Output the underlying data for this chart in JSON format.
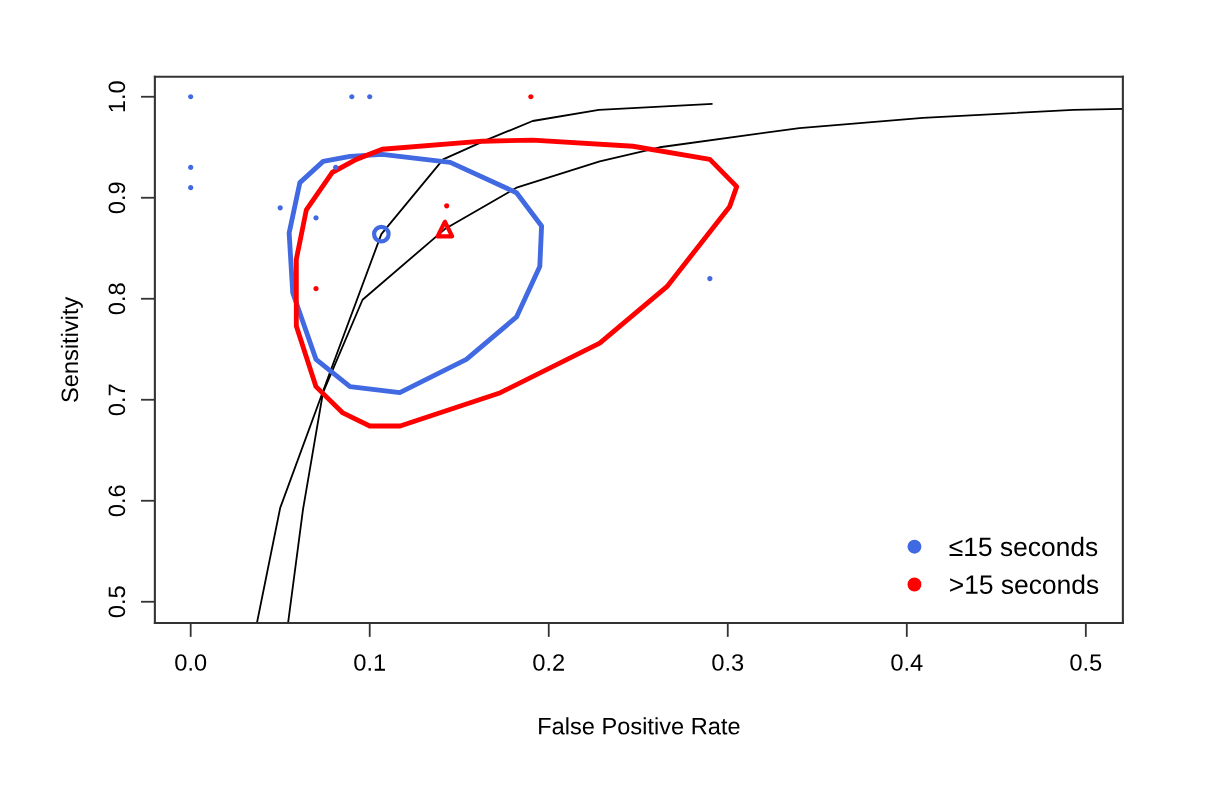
{
  "chart_data": {
    "type": "scatter",
    "xlabel": "False Positive Rate",
    "ylabel": "Sensitivity",
    "xlim": [
      -0.02,
      0.5207
    ],
    "ylim": [
      0.479,
      1.0198
    ],
    "xticks": [
      {
        "value": 0,
        "label": "0.0"
      },
      0.1,
      0.2,
      0.3,
      0.4,
      0.5
    ],
    "yticks": [
      0.5,
      0.6,
      0.7,
      0.8,
      0.9,
      {
        "value": 1,
        "label": "1.0"
      }
    ],
    "grid": false,
    "legend": "bottom right",
    "series": [
      {
        "type": "line",
        "color": "#000000",
        "marker": "none",
        "x": [
          0.037,
          0.05,
          0.0786,
          0.1065,
          0.141,
          0.165,
          0.191,
          0.228,
          0.291
        ],
        "values": [
          0.479,
          0.593,
          0.731,
          0.864,
          0.938,
          0.957,
          0.976,
          0.987,
          0.993
        ]
      },
      {
        "type": "line",
        "color": "#000000",
        "marker": "none",
        "x": [
          0.0544,
          0.0627,
          0.0739,
          0.096,
          0.142,
          0.182,
          0.2285,
          0.262,
          0.34,
          0.409,
          0.493,
          0.5207
        ],
        "values": [
          0.479,
          0.591,
          0.707,
          0.799,
          0.869,
          0.91,
          0.936,
          0.95,
          0.969,
          0.979,
          0.987,
          0.988
        ]
      },
      {
        "name": "≤15 seconds",
        "color": "#4169e1",
        "marker": "circle",
        "x": [
          0,
          0,
          0,
          0.09,
          0.1,
          0.05,
          0.07,
          0.081,
          0.29
        ],
        "values": [
          1.0,
          0.93,
          0.91,
          1.0,
          1.0,
          0.89,
          0.88,
          0.93,
          0.82
        ]
      },
      {
        "name": ">15 seconds",
        "color": "#ff0000",
        "marker": "circle",
        "x": [
          0.19,
          0.143,
          0.07
        ],
        "values": [
          1.0,
          0.892,
          0.81
        ]
      },
      {
        "color": "#4169e1",
        "marker": "circle",
        "x": [
          0.1065
        ],
        "values": [
          0.864
        ]
      },
      {
        "color": "#ff0000",
        "marker": "triangle",
        "x": [
          0.142
        ],
        "values": [
          0.869
        ]
      }
    ]
  }
}
